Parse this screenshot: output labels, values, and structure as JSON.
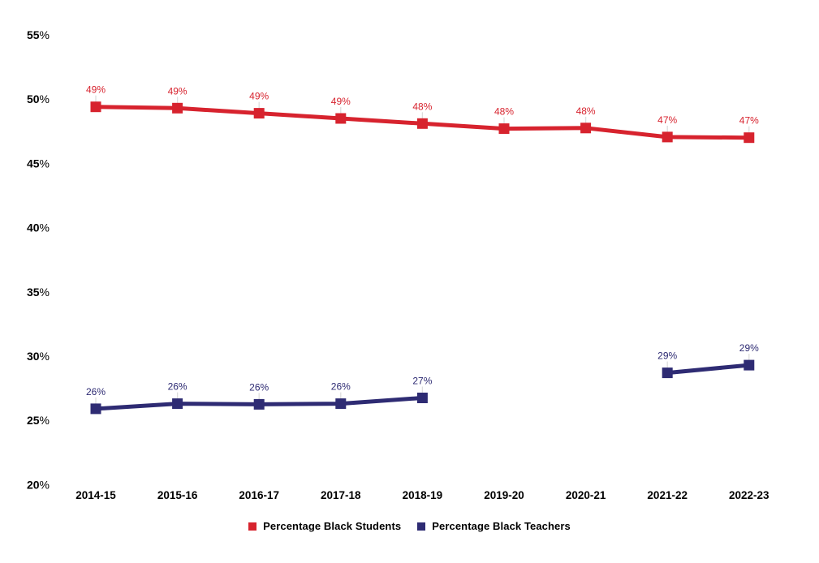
{
  "chart_data": {
    "type": "line",
    "title": "",
    "xlabel": "",
    "ylabel": "",
    "categories": [
      "2014-15",
      "2015-16",
      "2016-17",
      "2017-18",
      "2018-19",
      "2019-20",
      "2020-21",
      "2021-22",
      "2022-23"
    ],
    "series": [
      {
        "name": "Percentage Black Students",
        "color": "#d7232e",
        "marker": "square",
        "values": [
          49.4,
          49.3,
          48.9,
          48.5,
          48.1,
          47.7,
          47.75,
          47.05,
          47.0
        ],
        "point_labels": [
          "49%",
          "49%",
          "49%",
          "49%",
          "48%",
          "48%",
          "48%",
          "47%",
          "47%"
        ]
      },
      {
        "name": "Percentage Black Teachers",
        "color": "#2e2b73",
        "marker": "square",
        "values": [
          25.9,
          26.3,
          26.25,
          26.3,
          26.75,
          null,
          null,
          28.7,
          29.3
        ],
        "point_labels": [
          "26%",
          "26%",
          "26%",
          "26%",
          "27%",
          null,
          null,
          "29%",
          "29%"
        ]
      }
    ],
    "ylim": [
      20,
      55
    ],
    "ytick_labels": [
      "55%",
      "50%",
      "45%",
      "40%",
      "35%",
      "30%",
      "25%",
      "20%"
    ],
    "grid": false,
    "axes_lines": false,
    "legend_position": "bottom",
    "label_leader_tick_color": "#dddddd",
    "background_color": "#ffffff"
  }
}
